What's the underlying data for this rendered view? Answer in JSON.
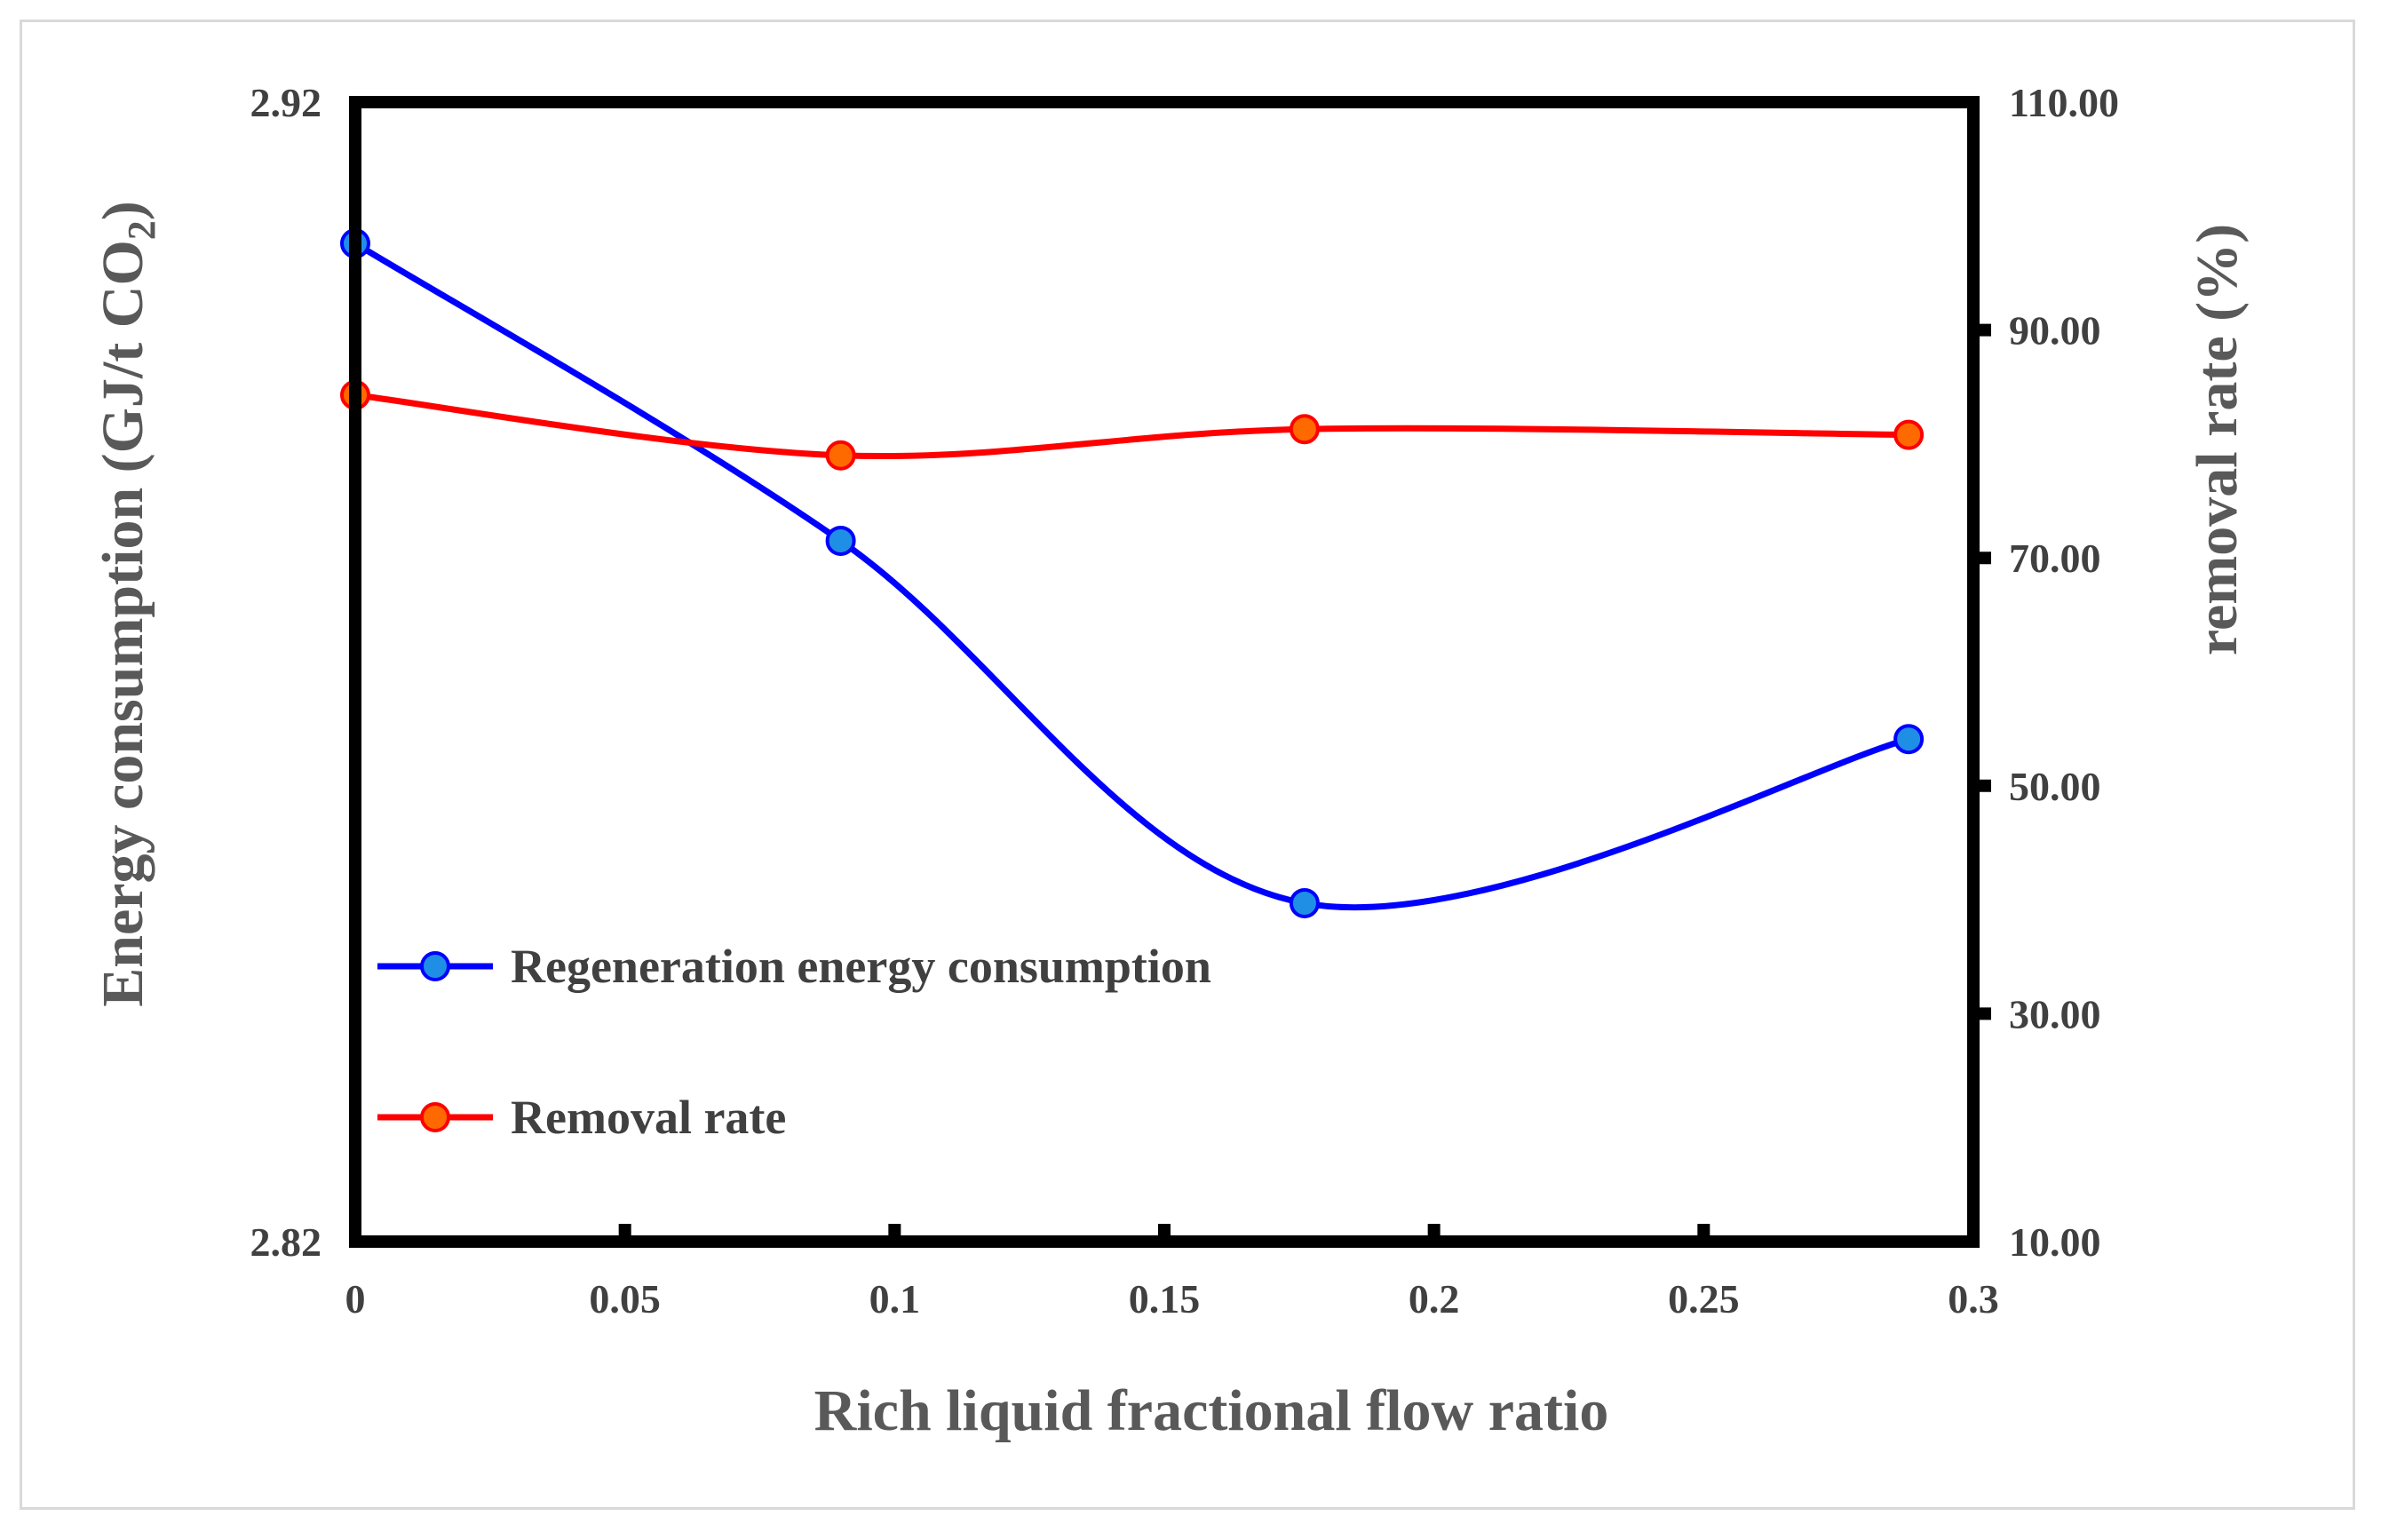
{
  "chart_data": {
    "type": "line",
    "xlabel": "Rich liquid fractional flow ratio",
    "ylabel": "Energy consumption (GJ/t CO",
    "ylabel_sub": "2",
    "ylabel_close": ")",
    "y2label": "removal rate (%)",
    "xlim": [
      0,
      0.3
    ],
    "ylim": [
      2.82,
      2.92
    ],
    "y2lim": [
      10,
      110
    ],
    "x_ticks": [
      "0",
      "0.05",
      "0.1",
      "0.15",
      "0.2",
      "0.25",
      "0.3"
    ],
    "y_ticks": [
      "2.82",
      "2.92"
    ],
    "y2_ticks": [
      "10.00",
      "30.00",
      "50.00",
      "70.00",
      "90.00",
      "110.00"
    ],
    "legend_position": "lower-left",
    "series": [
      {
        "name": "Regeneration energy consumption",
        "axis": "left",
        "color": "#0000ff",
        "marker_color": "#1f8fe6",
        "x": [
          0,
          0.09,
          0.176,
          0.288
        ],
        "y": [
          2.9076,
          2.8815,
          2.8497,
          2.8641
        ]
      },
      {
        "name": "Removal rate",
        "axis": "right",
        "color": "#ff0000",
        "marker_color": "#ff6a00",
        "x": [
          0,
          0.09,
          0.176,
          0.288
        ],
        "y": [
          84.3,
          79.0,
          81.3,
          80.8
        ]
      }
    ]
  }
}
